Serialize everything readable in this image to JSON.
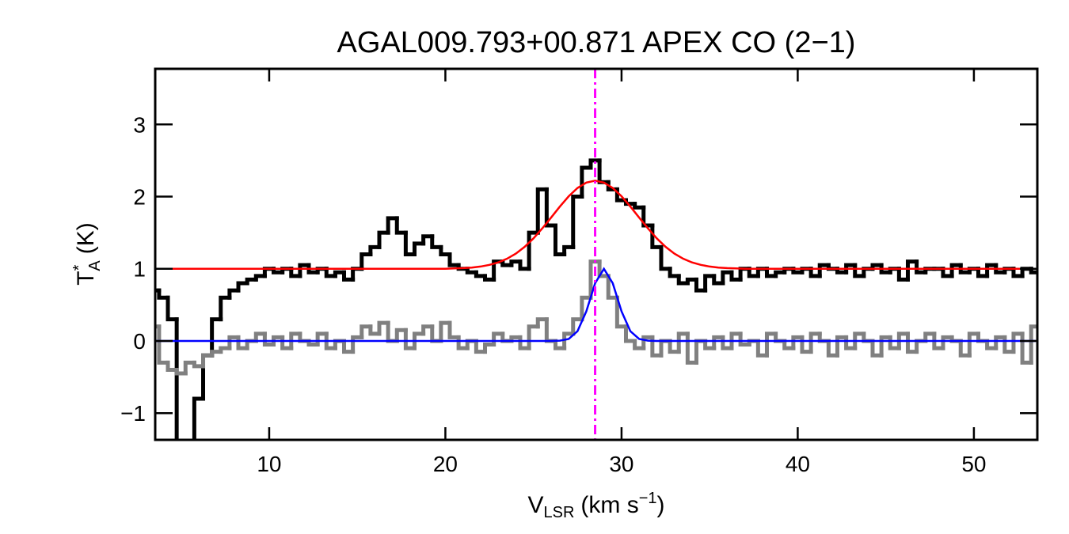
{
  "chart_data": {
    "type": "line",
    "title": "AGAL009.793+00.871  APEX CO (2−1)",
    "xlabel": {
      "main": "V",
      "sub": "LSR",
      "unit": "(km s",
      "sup": "−1",
      "close": ")"
    },
    "ylabel": {
      "main": "T",
      "sup": "*",
      "sub": "A",
      "unit": "(K)"
    },
    "xlim": [
      3.53,
      53.6
    ],
    "ylim": [
      -1.37,
      3.77
    ],
    "xticks": [
      10,
      20,
      30,
      40,
      50
    ],
    "yticks": [
      {
        "value": -1,
        "label": "−1"
      },
      0,
      1,
      2,
      3
    ],
    "x": [
      3.5,
      4,
      4.5,
      5,
      5.5,
      6,
      6.5,
      7,
      7.5,
      8,
      8.5,
      9,
      9.5,
      10,
      10.5,
      11,
      11.5,
      12,
      12.5,
      13,
      13.5,
      14,
      14.5,
      15,
      15.5,
      16,
      16.5,
      17,
      17.5,
      18,
      18.5,
      19,
      19.5,
      20,
      20.5,
      21,
      21.5,
      22,
      22.5,
      23,
      23.5,
      24,
      24.5,
      25,
      25.5,
      26,
      26.5,
      27,
      27.5,
      28,
      28.5,
      29,
      29.5,
      30,
      30.5,
      31,
      31.5,
      32,
      32.5,
      33,
      33.5,
      34,
      34.5,
      35,
      35.5,
      36,
      36.5,
      37,
      37.5,
      38,
      38.5,
      39,
      39.5,
      40,
      40.5,
      41,
      41.5,
      42,
      42.5,
      43,
      43.5,
      44,
      44.5,
      45,
      45.5,
      46,
      46.5,
      47,
      47.5,
      48,
      48.5,
      49,
      49.5,
      50,
      50.5,
      51,
      51.5,
      52,
      52.5,
      53,
      53.5
    ],
    "series": [
      {
        "name": "spectrum",
        "style": "step",
        "color": "#000000",
        "width": 5,
        "values": [
          0.7,
          0.6,
          0.3,
          -1.4,
          -1.4,
          -0.8,
          -0.2,
          0.3,
          0.6,
          0.7,
          0.8,
          0.85,
          0.9,
          1.0,
          0.95,
          1.0,
          0.9,
          1.05,
          0.95,
          1.0,
          0.9,
          0.95,
          0.85,
          1.0,
          1.2,
          1.3,
          1.5,
          1.7,
          1.5,
          1.2,
          1.35,
          1.45,
          1.3,
          1.2,
          1.05,
          1.0,
          0.95,
          0.9,
          0.85,
          1.1,
          1.05,
          1.1,
          1.0,
          1.5,
          2.1,
          1.6,
          1.2,
          1.3,
          2.0,
          2.4,
          2.5,
          2.2,
          2.1,
          1.95,
          1.9,
          1.85,
          1.6,
          1.3,
          1.0,
          0.9,
          0.8,
          0.85,
          0.7,
          0.9,
          0.8,
          0.95,
          0.85,
          1.0,
          0.9,
          1.0,
          0.9,
          0.95,
          1.0,
          0.95,
          1.0,
          0.9,
          1.05,
          1.0,
          0.95,
          1.05,
          0.9,
          1.0,
          1.05,
          0.95,
          1.0,
          0.85,
          1.1,
          0.95,
          1.0,
          1.0,
          0.9,
          1.05,
          0.95,
          1.0,
          0.9,
          1.05,
          0.95,
          1.0,
          0.9,
          1.0,
          0.95
        ]
      },
      {
        "name": "subtracted",
        "style": "step",
        "color": "#808080",
        "width": 5,
        "values": [
          0.2,
          -0.3,
          -0.4,
          -0.45,
          -0.3,
          -0.35,
          -0.2,
          -0.15,
          -0.1,
          0.05,
          -0.1,
          0.0,
          0.1,
          -0.05,
          0.05,
          -0.1,
          0.1,
          0.0,
          -0.05,
          0.1,
          -0.1,
          0.0,
          -0.15,
          0.05,
          0.2,
          0.1,
          0.25,
          0.0,
          0.15,
          -0.1,
          0.1,
          0.2,
          0.0,
          0.25,
          0.05,
          -0.1,
          0.0,
          -0.15,
          -0.05,
          0.1,
          0.0,
          0.05,
          -0.1,
          0.2,
          0.3,
          0.0,
          -0.1,
          0.1,
          0.3,
          0.6,
          1.1,
          0.9,
          0.6,
          0.2,
          0.0,
          -0.1,
          0.05,
          -0.2,
          0.0,
          -0.15,
          0.1,
          -0.3,
          0.0,
          -0.1,
          0.05,
          -0.1,
          0.1,
          -0.05,
          0.0,
          -0.2,
          0.1,
          0.0,
          -0.1,
          0.05,
          -0.15,
          0.1,
          0.0,
          -0.2,
          0.05,
          -0.1,
          0.1,
          0.0,
          -0.2,
          0.05,
          -0.1,
          0.1,
          -0.15,
          0.0,
          0.1,
          -0.1,
          0.05,
          0.0,
          -0.2,
          0.1,
          0.0,
          -0.1,
          0.05,
          -0.15,
          0.1,
          -0.3,
          0.2
        ]
      },
      {
        "name": "fit",
        "style": "line",
        "color": "#ff0000",
        "width": 2.5,
        "values": [
          1,
          1,
          1,
          1,
          1,
          1,
          1,
          1,
          1,
          1,
          1,
          1,
          1,
          1,
          1,
          1,
          1,
          1,
          1,
          1,
          1,
          1,
          1,
          1,
          1,
          1,
          1,
          1,
          1,
          1,
          1,
          1,
          1,
          1,
          1.005,
          1.009,
          1.017,
          1.031,
          1.054,
          1.088,
          1.139,
          1.21,
          1.304,
          1.421,
          1.559,
          1.709,
          1.862,
          2.004,
          2.119,
          2.194,
          2.22,
          2.194,
          2.119,
          2.004,
          1.862,
          1.709,
          1.559,
          1.421,
          1.304,
          1.21,
          1.139,
          1.088,
          1.054,
          1.031,
          1.017,
          1.009,
          1.005,
          1,
          1,
          1,
          1,
          1,
          1,
          1,
          1,
          1,
          1,
          1,
          1,
          1,
          1,
          1,
          1,
          1,
          1,
          1,
          1,
          1,
          1,
          1,
          1,
          1,
          1,
          1,
          1,
          1,
          1,
          1,
          1,
          1,
          1
        ]
      },
      {
        "name": "gauss",
        "style": "line",
        "color": "#0000ff",
        "width": 2.5,
        "values": [
          0,
          0,
          0,
          0,
          0,
          0,
          0,
          0,
          0,
          0,
          0,
          0,
          0,
          0,
          0,
          0,
          0,
          0,
          0,
          0,
          0,
          0,
          0,
          0,
          0,
          0,
          0,
          0,
          0,
          0,
          0,
          0,
          0,
          0,
          0,
          0,
          0,
          0,
          0,
          0,
          0,
          0,
          0,
          0,
          0,
          0,
          0.004,
          0.028,
          0.135,
          0.41,
          0.8,
          1,
          0.8,
          0.41,
          0.135,
          0.028,
          0.004,
          0,
          0,
          0,
          0,
          0,
          0,
          0,
          0,
          0,
          0,
          0,
          0,
          0,
          0,
          0,
          0,
          0,
          0,
          0,
          0,
          0,
          0,
          0,
          0,
          0,
          0,
          0,
          0,
          0,
          0,
          0,
          0,
          0,
          0,
          0,
          0,
          0,
          0,
          0,
          0,
          0,
          0,
          0,
          0
        ]
      }
    ],
    "vline": {
      "x": 28.5,
      "color": "#ff00ff"
    }
  }
}
